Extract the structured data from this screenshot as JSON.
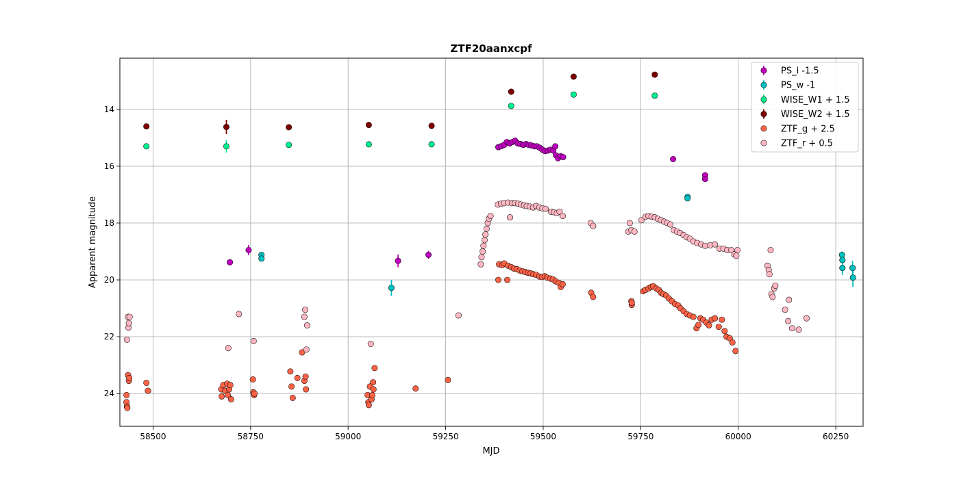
{
  "chart_data": {
    "type": "scatter",
    "title": "ZTF20aanxcpf",
    "xlabel": "MJD",
    "ylabel": "Apparent magnitude",
    "xlim": [
      58415,
      60320
    ],
    "ylim": [
      25.15,
      12.2
    ],
    "y_inverted": true,
    "grid": true,
    "legend_position": "top-right",
    "xticks": [
      58500,
      58750,
      59000,
      59250,
      59500,
      59750,
      60000,
      60250
    ],
    "xtick_labels": [
      "58500",
      "58750",
      "59000",
      "59250",
      "59500",
      "59750",
      "60000",
      "60250"
    ],
    "yticks": [
      14,
      16,
      18,
      20,
      22,
      24
    ],
    "ytick_labels": [
      "14",
      "16",
      "18",
      "20",
      "22",
      "24"
    ],
    "series": [
      {
        "name": "PS_i -1.5",
        "color": "#bf00bf",
        "points": [
          [
            58697,
            19.38,
            0.1
          ],
          [
            58745,
            18.95,
            0.18
          ],
          [
            59128,
            19.33,
            0.22
          ],
          [
            59206,
            19.12,
            0.14
          ],
          [
            59385,
            15.33,
            0.04
          ],
          [
            59392,
            15.3,
            0.04
          ],
          [
            59400,
            15.25,
            0.04
          ],
          [
            59407,
            15.15,
            0.04
          ],
          [
            59414,
            15.2,
            0.04
          ],
          [
            59421,
            15.15,
            0.04
          ],
          [
            59428,
            15.1,
            0.04
          ],
          [
            59435,
            15.2,
            0.04
          ],
          [
            59442,
            15.22,
            0.04
          ],
          [
            59449,
            15.25,
            0.04
          ],
          [
            59456,
            15.22,
            0.04
          ],
          [
            59463,
            15.25,
            0.04
          ],
          [
            59470,
            15.27,
            0.04
          ],
          [
            59477,
            15.3,
            0.04
          ],
          [
            59484,
            15.3,
            0.04
          ],
          [
            59491,
            15.35,
            0.04
          ],
          [
            59498,
            15.42,
            0.04
          ],
          [
            59505,
            15.47,
            0.04
          ],
          [
            59512,
            15.45,
            0.04
          ],
          [
            59519,
            15.42,
            0.04
          ],
          [
            59526,
            15.45,
            0.04
          ],
          [
            59531,
            15.3,
            0.05
          ],
          [
            59533,
            15.62,
            0.05
          ],
          [
            59538,
            15.72,
            0.05
          ],
          [
            59545,
            15.65,
            0.05
          ],
          [
            59551,
            15.68,
            0.05
          ],
          [
            59833,
            15.75,
            0.06
          ],
          [
            59915,
            16.32,
            0.06
          ],
          [
            59915,
            16.45,
            0.06
          ]
        ]
      },
      {
        "name": "PS_w -1",
        "color": "#00bfbf",
        "points": [
          [
            58778,
            19.12,
            0.08
          ],
          [
            58778,
            19.25,
            0.08
          ],
          [
            59111,
            20.28,
            0.28
          ],
          [
            59870,
            17.08,
            0.07
          ],
          [
            59870,
            17.13,
            0.07
          ],
          [
            60266,
            19.12,
            0.12
          ],
          [
            60267,
            19.3,
            0.12
          ],
          [
            60267,
            19.58,
            0.25
          ],
          [
            60293,
            19.58,
            0.25
          ],
          [
            60294,
            19.92,
            0.32
          ]
        ]
      },
      {
        "name": "WISE_W1 + 1.5",
        "color": "#00ee90",
        "points": [
          [
            58483,
            15.3,
            0.05
          ],
          [
            58688,
            15.3,
            0.22
          ],
          [
            58848,
            15.25,
            0.05
          ],
          [
            59053,
            15.23,
            0.05
          ],
          [
            59214,
            15.23,
            0.05
          ],
          [
            59418,
            13.88,
            0.05
          ],
          [
            59578,
            13.48,
            0.05
          ],
          [
            59786,
            13.52,
            0.05
          ]
        ]
      },
      {
        "name": "WISE_W2 + 1.5",
        "color": "#7f0000",
        "points": [
          [
            58483,
            14.6,
            0.05
          ],
          [
            58688,
            14.62,
            0.25
          ],
          [
            58848,
            14.63,
            0.05
          ],
          [
            59053,
            14.55,
            0.05
          ],
          [
            59214,
            14.58,
            0.05
          ],
          [
            59418,
            13.38,
            0.05
          ],
          [
            59578,
            12.85,
            0.05
          ],
          [
            59786,
            12.78,
            0.05
          ]
        ]
      },
      {
        "name": "ZTF_g + 2.5",
        "color": "#ff6347",
        "points": [
          [
            58432,
            24.05
          ],
          [
            58432,
            24.3
          ],
          [
            58433,
            24.45
          ],
          [
            58434,
            24.5
          ],
          [
            58436,
            23.35
          ],
          [
            58438,
            23.55
          ],
          [
            58439,
            23.45
          ],
          [
            58483,
            23.62
          ],
          [
            58487,
            23.9
          ],
          [
            58675,
            23.85
          ],
          [
            58676,
            24.1
          ],
          [
            58680,
            23.7
          ],
          [
            58685,
            23.9
          ],
          [
            58690,
            23.65
          ],
          [
            58692,
            24.05
          ],
          [
            58695,
            23.85
          ],
          [
            58698,
            23.7
          ],
          [
            58700,
            24.2
          ],
          [
            58756,
            23.5
          ],
          [
            58757,
            23.95
          ],
          [
            58759,
            24.05
          ],
          [
            58760,
            24.0
          ],
          [
            58852,
            23.22
          ],
          [
            58855,
            23.75
          ],
          [
            58858,
            24.15
          ],
          [
            58870,
            23.45
          ],
          [
            58882,
            22.55
          ],
          [
            58888,
            23.55
          ],
          [
            58891,
            23.4
          ],
          [
            58892,
            23.85
          ],
          [
            59050,
            24.05
          ],
          [
            59052,
            24.3
          ],
          [
            59053,
            24.4
          ],
          [
            59056,
            23.75
          ],
          [
            59060,
            24.2
          ],
          [
            59062,
            24.05
          ],
          [
            59064,
            23.6
          ],
          [
            59065,
            23.85
          ],
          [
            59068,
            23.1
          ],
          [
            59173,
            23.82
          ],
          [
            59256,
            23.52
          ],
          [
            59385,
            20.0
          ],
          [
            59387,
            19.45
          ],
          [
            59395,
            19.48
          ],
          [
            59400,
            19.42
          ],
          [
            59408,
            20.0
          ],
          [
            59410,
            19.5
          ],
          [
            59418,
            19.55
          ],
          [
            59425,
            19.6
          ],
          [
            59432,
            19.62
          ],
          [
            59440,
            19.67
          ],
          [
            59447,
            19.7
          ],
          [
            59454,
            19.72
          ],
          [
            59461,
            19.75
          ],
          [
            59468,
            19.77
          ],
          [
            59475,
            19.8
          ],
          [
            59482,
            19.82
          ],
          [
            59490,
            19.88
          ],
          [
            59497,
            19.9
          ],
          [
            59504,
            19.87
          ],
          [
            59510,
            19.92
          ],
          [
            59518,
            19.95
          ],
          [
            59525,
            19.98
          ],
          [
            59532,
            20.05
          ],
          [
            59540,
            20.1
          ],
          [
            59545,
            20.25
          ],
          [
            59550,
            20.15
          ],
          [
            59623,
            20.45
          ],
          [
            59628,
            20.6
          ],
          [
            59726,
            20.75
          ],
          [
            59727,
            20.88
          ],
          [
            59727,
            20.8
          ],
          [
            59756,
            20.4
          ],
          [
            59762,
            20.35
          ],
          [
            59770,
            20.3
          ],
          [
            59776,
            20.25
          ],
          [
            59782,
            20.22
          ],
          [
            59790,
            20.3
          ],
          [
            59796,
            20.35
          ],
          [
            59802,
            20.45
          ],
          [
            59808,
            20.5
          ],
          [
            59815,
            20.55
          ],
          [
            59822,
            20.65
          ],
          [
            59830,
            20.75
          ],
          [
            59838,
            20.85
          ],
          [
            59846,
            20.9
          ],
          [
            59852,
            21.0
          ],
          [
            59860,
            21.1
          ],
          [
            59868,
            21.2
          ],
          [
            59876,
            21.25
          ],
          [
            59885,
            21.3
          ],
          [
            59893,
            21.7
          ],
          [
            59898,
            21.58
          ],
          [
            59903,
            21.35
          ],
          [
            59910,
            21.4
          ],
          [
            59918,
            21.5
          ],
          [
            59925,
            21.6
          ],
          [
            59932,
            21.4
          ],
          [
            59940,
            21.35
          ],
          [
            59950,
            21.65
          ],
          [
            59958,
            21.4
          ],
          [
            59965,
            21.8
          ],
          [
            59970,
            22.0
          ],
          [
            59978,
            22.05
          ],
          [
            59985,
            22.2
          ],
          [
            59993,
            22.5
          ]
        ]
      },
      {
        "name": "ZTF_r + 0.5",
        "color": "#ffb6c1",
        "points": [
          [
            58433,
            22.1
          ],
          [
            58436,
            21.3
          ],
          [
            58437,
            21.68
          ],
          [
            58438,
            21.52
          ],
          [
            58440,
            21.3
          ],
          [
            58693,
            22.4
          ],
          [
            58720,
            21.2
          ],
          [
            58758,
            22.15
          ],
          [
            58888,
            21.3
          ],
          [
            58890,
            21.05
          ],
          [
            58893,
            22.45
          ],
          [
            58895,
            21.6
          ],
          [
            59058,
            22.25
          ],
          [
            59283,
            21.25
          ],
          [
            59340,
            19.45
          ],
          [
            59342,
            19.2
          ],
          [
            59345,
            19.0
          ],
          [
            59347,
            18.8
          ],
          [
            59350,
            18.6
          ],
          [
            59352,
            18.4
          ],
          [
            59355,
            18.2
          ],
          [
            59358,
            18.0
          ],
          [
            59361,
            17.85
          ],
          [
            59365,
            17.75
          ],
          [
            59384,
            17.35
          ],
          [
            59392,
            17.32
          ],
          [
            59400,
            17.3
          ],
          [
            59410,
            17.28
          ],
          [
            59415,
            17.8
          ],
          [
            59420,
            17.3
          ],
          [
            59428,
            17.3
          ],
          [
            59436,
            17.32
          ],
          [
            59443,
            17.35
          ],
          [
            59451,
            17.38
          ],
          [
            59458,
            17.4
          ],
          [
            59466,
            17.42
          ],
          [
            59474,
            17.45
          ],
          [
            59482,
            17.4
          ],
          [
            59490,
            17.45
          ],
          [
            59498,
            17.48
          ],
          [
            59506,
            17.5
          ],
          [
            59520,
            17.6
          ],
          [
            59528,
            17.62
          ],
          [
            59535,
            17.65
          ],
          [
            59542,
            17.6
          ],
          [
            59550,
            17.75
          ],
          [
            59622,
            18.0
          ],
          [
            59628,
            18.1
          ],
          [
            59718,
            18.3
          ],
          [
            59722,
            18.0
          ],
          [
            59726,
            18.25
          ],
          [
            59734,
            18.3
          ],
          [
            59752,
            17.9
          ],
          [
            59762,
            17.78
          ],
          [
            59770,
            17.75
          ],
          [
            59778,
            17.78
          ],
          [
            59786,
            17.8
          ],
          [
            59794,
            17.85
          ],
          [
            59802,
            17.9
          ],
          [
            59810,
            17.95
          ],
          [
            59818,
            18.0
          ],
          [
            59826,
            18.05
          ],
          [
            59835,
            18.25
          ],
          [
            59843,
            18.3
          ],
          [
            59851,
            18.35
          ],
          [
            59860,
            18.42
          ],
          [
            59868,
            18.5
          ],
          [
            59876,
            18.55
          ],
          [
            59885,
            18.65
          ],
          [
            59895,
            18.7
          ],
          [
            59905,
            18.75
          ],
          [
            59915,
            18.8
          ],
          [
            59928,
            18.78
          ],
          [
            59940,
            18.75
          ],
          [
            59952,
            18.9
          ],
          [
            59962,
            18.9
          ],
          [
            59972,
            18.95
          ],
          [
            59982,
            18.95
          ],
          [
            59990,
            19.1
          ],
          [
            59995,
            19.15
          ],
          [
            59998,
            18.95
          ],
          [
            60075,
            19.5
          ],
          [
            60078,
            19.65
          ],
          [
            60080,
            19.8
          ],
          [
            60083,
            18.95
          ],
          [
            60085,
            20.5
          ],
          [
            60088,
            20.6
          ],
          [
            60092,
            20.3
          ],
          [
            60095,
            20.2
          ],
          [
            60120,
            21.05
          ],
          [
            60128,
            21.45
          ],
          [
            60130,
            20.7
          ],
          [
            60138,
            21.7
          ],
          [
            60155,
            21.75
          ],
          [
            60175,
            21.35
          ]
        ]
      }
    ]
  }
}
